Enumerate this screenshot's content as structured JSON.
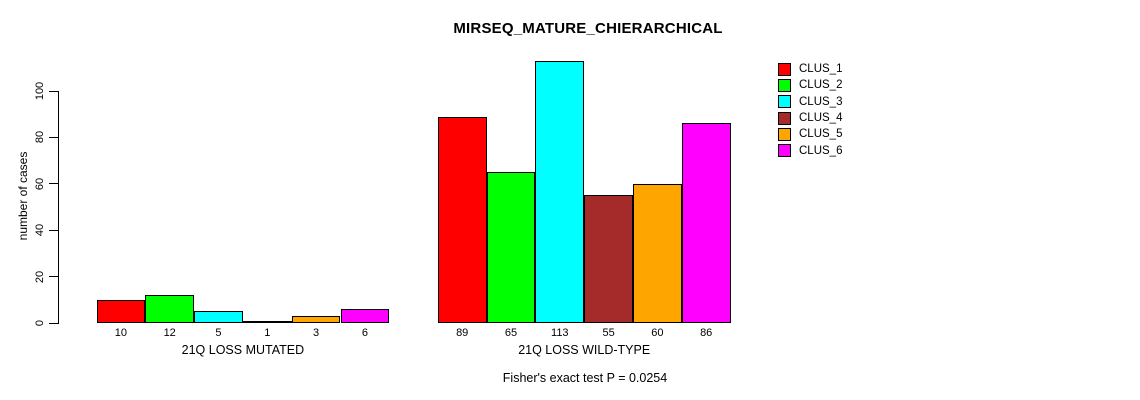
{
  "chart_data": {
    "type": "bar",
    "title": "MIRSEQ_MATURE_CHIERARCHICAL",
    "ylabel": "number of cases",
    "xlabel": "",
    "y_ticks": [
      0,
      20,
      40,
      60,
      80,
      100
    ],
    "ylim": [
      0,
      116
    ],
    "grid": false,
    "legend_position": "top-right",
    "series": [
      {
        "name": "CLUS_1",
        "color": "#FF0000"
      },
      {
        "name": "CLUS_2",
        "color": "#00FF00"
      },
      {
        "name": "CLUS_3",
        "color": "#00FFFF"
      },
      {
        "name": "CLUS_4",
        "color": "#A52A2A"
      },
      {
        "name": "CLUS_5",
        "color": "#FFA500"
      },
      {
        "name": "CLUS_6",
        "color": "#FF00FF"
      }
    ],
    "groups": [
      {
        "label": "21Q LOSS MUTATED",
        "values": [
          10,
          12,
          5,
          1,
          3,
          6
        ]
      },
      {
        "label": "21Q LOSS WILD-TYPE",
        "values": [
          89,
          65,
          113,
          55,
          60,
          86
        ]
      }
    ],
    "footnote": "Fisher's exact test P = 0.0254"
  }
}
